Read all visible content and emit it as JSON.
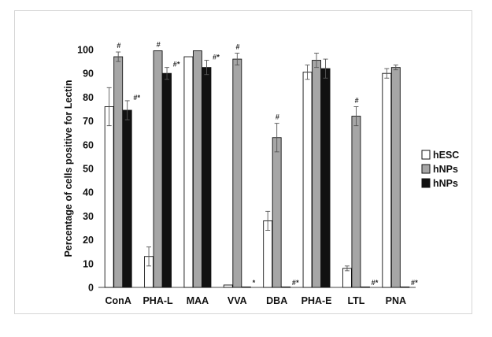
{
  "chart_data": {
    "type": "bar",
    "title": "",
    "xlabel": "",
    "ylabel": "Percentage of cells positive for Lectin",
    "ylim": [
      0,
      100
    ],
    "yticks": [
      0,
      10,
      20,
      30,
      40,
      50,
      60,
      70,
      80,
      90,
      100
    ],
    "grid": false,
    "legend_position": "right",
    "categories": [
      "ConA",
      "PHA-L",
      "MAA",
      "VVA",
      "DBA",
      "PHA-E",
      "LTL",
      "PNA"
    ],
    "series": [
      {
        "name": "hESC",
        "color": "#ffffff",
        "values": [
          76,
          13,
          97,
          1,
          28,
          90.5,
          8,
          90
        ],
        "errors": [
          8,
          4,
          0,
          0,
          4,
          3,
          1,
          2
        ],
        "marks": [
          "",
          "",
          "",
          "",
          "",
          "",
          "",
          ""
        ]
      },
      {
        "name": "hNPs",
        "color": "#a6a6a6",
        "values": [
          97,
          99.5,
          99.5,
          96,
          63,
          95.5,
          72,
          92.5
        ],
        "errors": [
          2,
          0,
          0,
          2.5,
          6,
          3,
          4,
          1
        ],
        "marks": [
          "#",
          "#",
          "",
          "#",
          "#",
          "",
          "#",
          ""
        ]
      },
      {
        "name": "hNPs",
        "color": "#111111",
        "values": [
          74.5,
          90,
          92.5,
          0,
          0,
          92,
          0,
          0
        ],
        "errors": [
          4,
          2.5,
          3,
          0,
          0,
          4,
          0,
          0
        ],
        "marks": [
          "#*",
          "#*",
          "#*",
          "*",
          "#*",
          "",
          "#*",
          "#*"
        ]
      }
    ]
  }
}
